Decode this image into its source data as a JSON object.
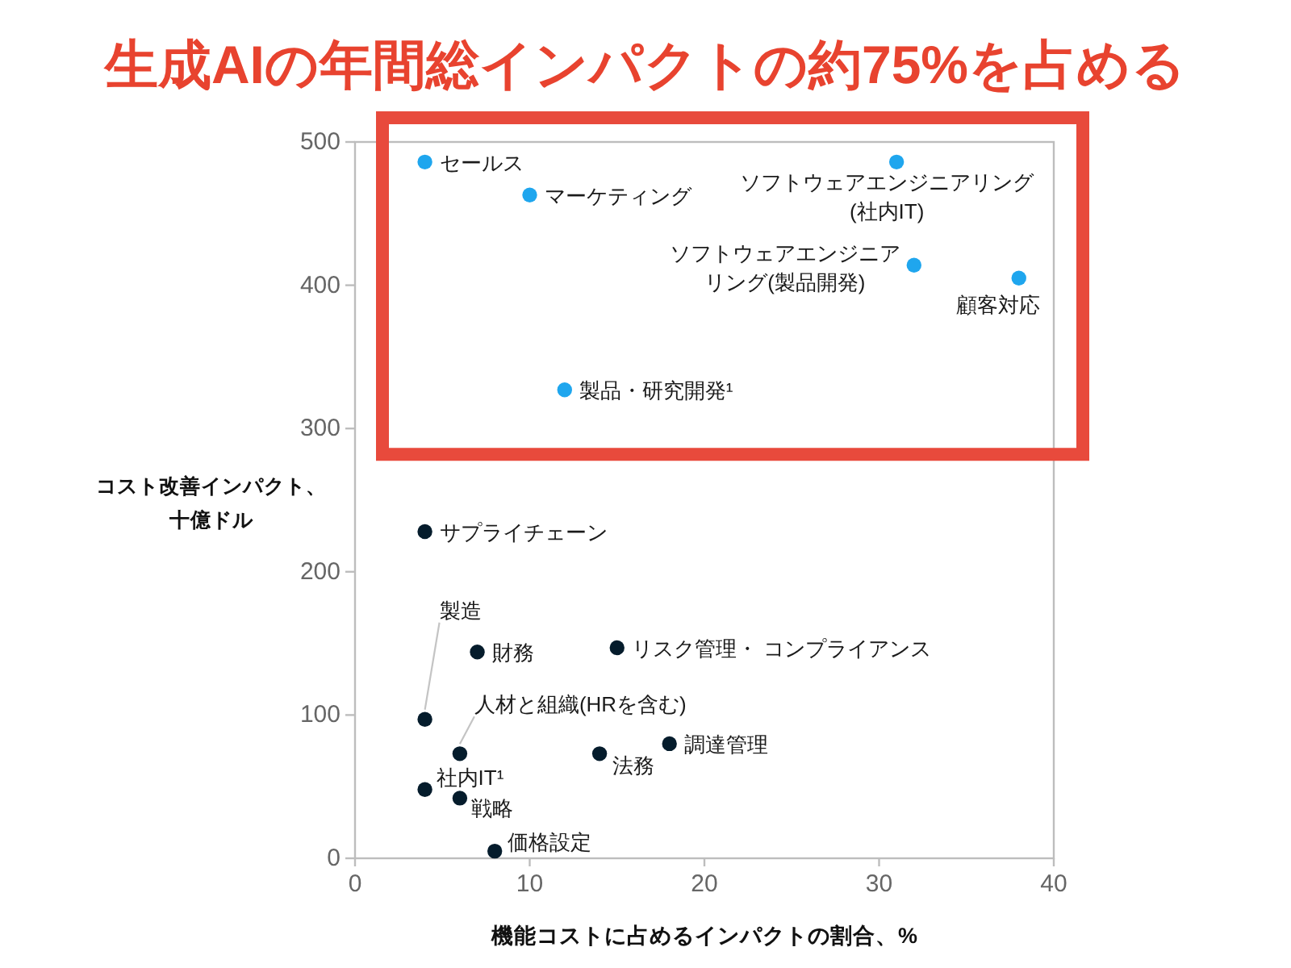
{
  "chart_data": {
    "type": "scatter",
    "title": "生成AIの年間総インパクトの約75%を占める",
    "xlabel": "機能コストに占めるインパクトの割合、%",
    "ylabel": "コスト改善インパクト、十億ドル",
    "series": [
      {
        "color": "#1fa6ee",
        "x": [
          4,
          10,
          31,
          32,
          38,
          12
        ],
        "values": [
          486,
          463,
          486,
          414,
          405,
          327
        ]
      },
      {
        "color": "#051c2c",
        "x": [
          4,
          4,
          7,
          15,
          6,
          14,
          18,
          4,
          6,
          8
        ],
        "values": [
          228,
          97,
          144,
          147,
          73,
          73,
          80,
          48,
          42,
          5
        ]
      }
    ],
    "annotations": [
      {
        "text": "セールス",
        "x": 4,
        "y": 486
      },
      {
        "text": "マーケティング",
        "x": 10,
        "y": 463
      },
      {
        "text": "ソフトウェアエンジニアリング(社内IT)",
        "x": 31,
        "y": 486
      },
      {
        "text": "ソフトウェアエンジニアリング(製品開発)",
        "x": 32,
        "y": 414
      },
      {
        "text": "顧客対応",
        "x": 38,
        "y": 405
      },
      {
        "text": "製品・研究開発¹",
        "x": 12,
        "y": 327
      },
      {
        "text": "サプライチェーン",
        "x": 4,
        "y": 228
      },
      {
        "text": "製造",
        "x": 4,
        "y": 97
      },
      {
        "text": "財務",
        "x": 7,
        "y": 144
      },
      {
        "text": "リスク管理・ コンプライアンス",
        "x": 15,
        "y": 147
      },
      {
        "text": "人材と組織(HRを含む)",
        "x": 6,
        "y": 73
      },
      {
        "text": "法務",
        "x": 14,
        "y": 73
      },
      {
        "text": "調達管理",
        "x": 18,
        "y": 80
      },
      {
        "text": "社内IT¹",
        "x": 4,
        "y": 48
      },
      {
        "text": "戦略",
        "x": 6,
        "y": 42
      },
      {
        "text": "価格設定",
        "x": 8,
        "y": 5
      }
    ],
    "xlim": [
      0,
      40
    ],
    "xticks": [
      0,
      10,
      20,
      30,
      40
    ],
    "ylim": [
      0,
      500
    ],
    "yticks": [
      0,
      100,
      200,
      300,
      400,
      500
    ],
    "marker": "circle"
  }
}
